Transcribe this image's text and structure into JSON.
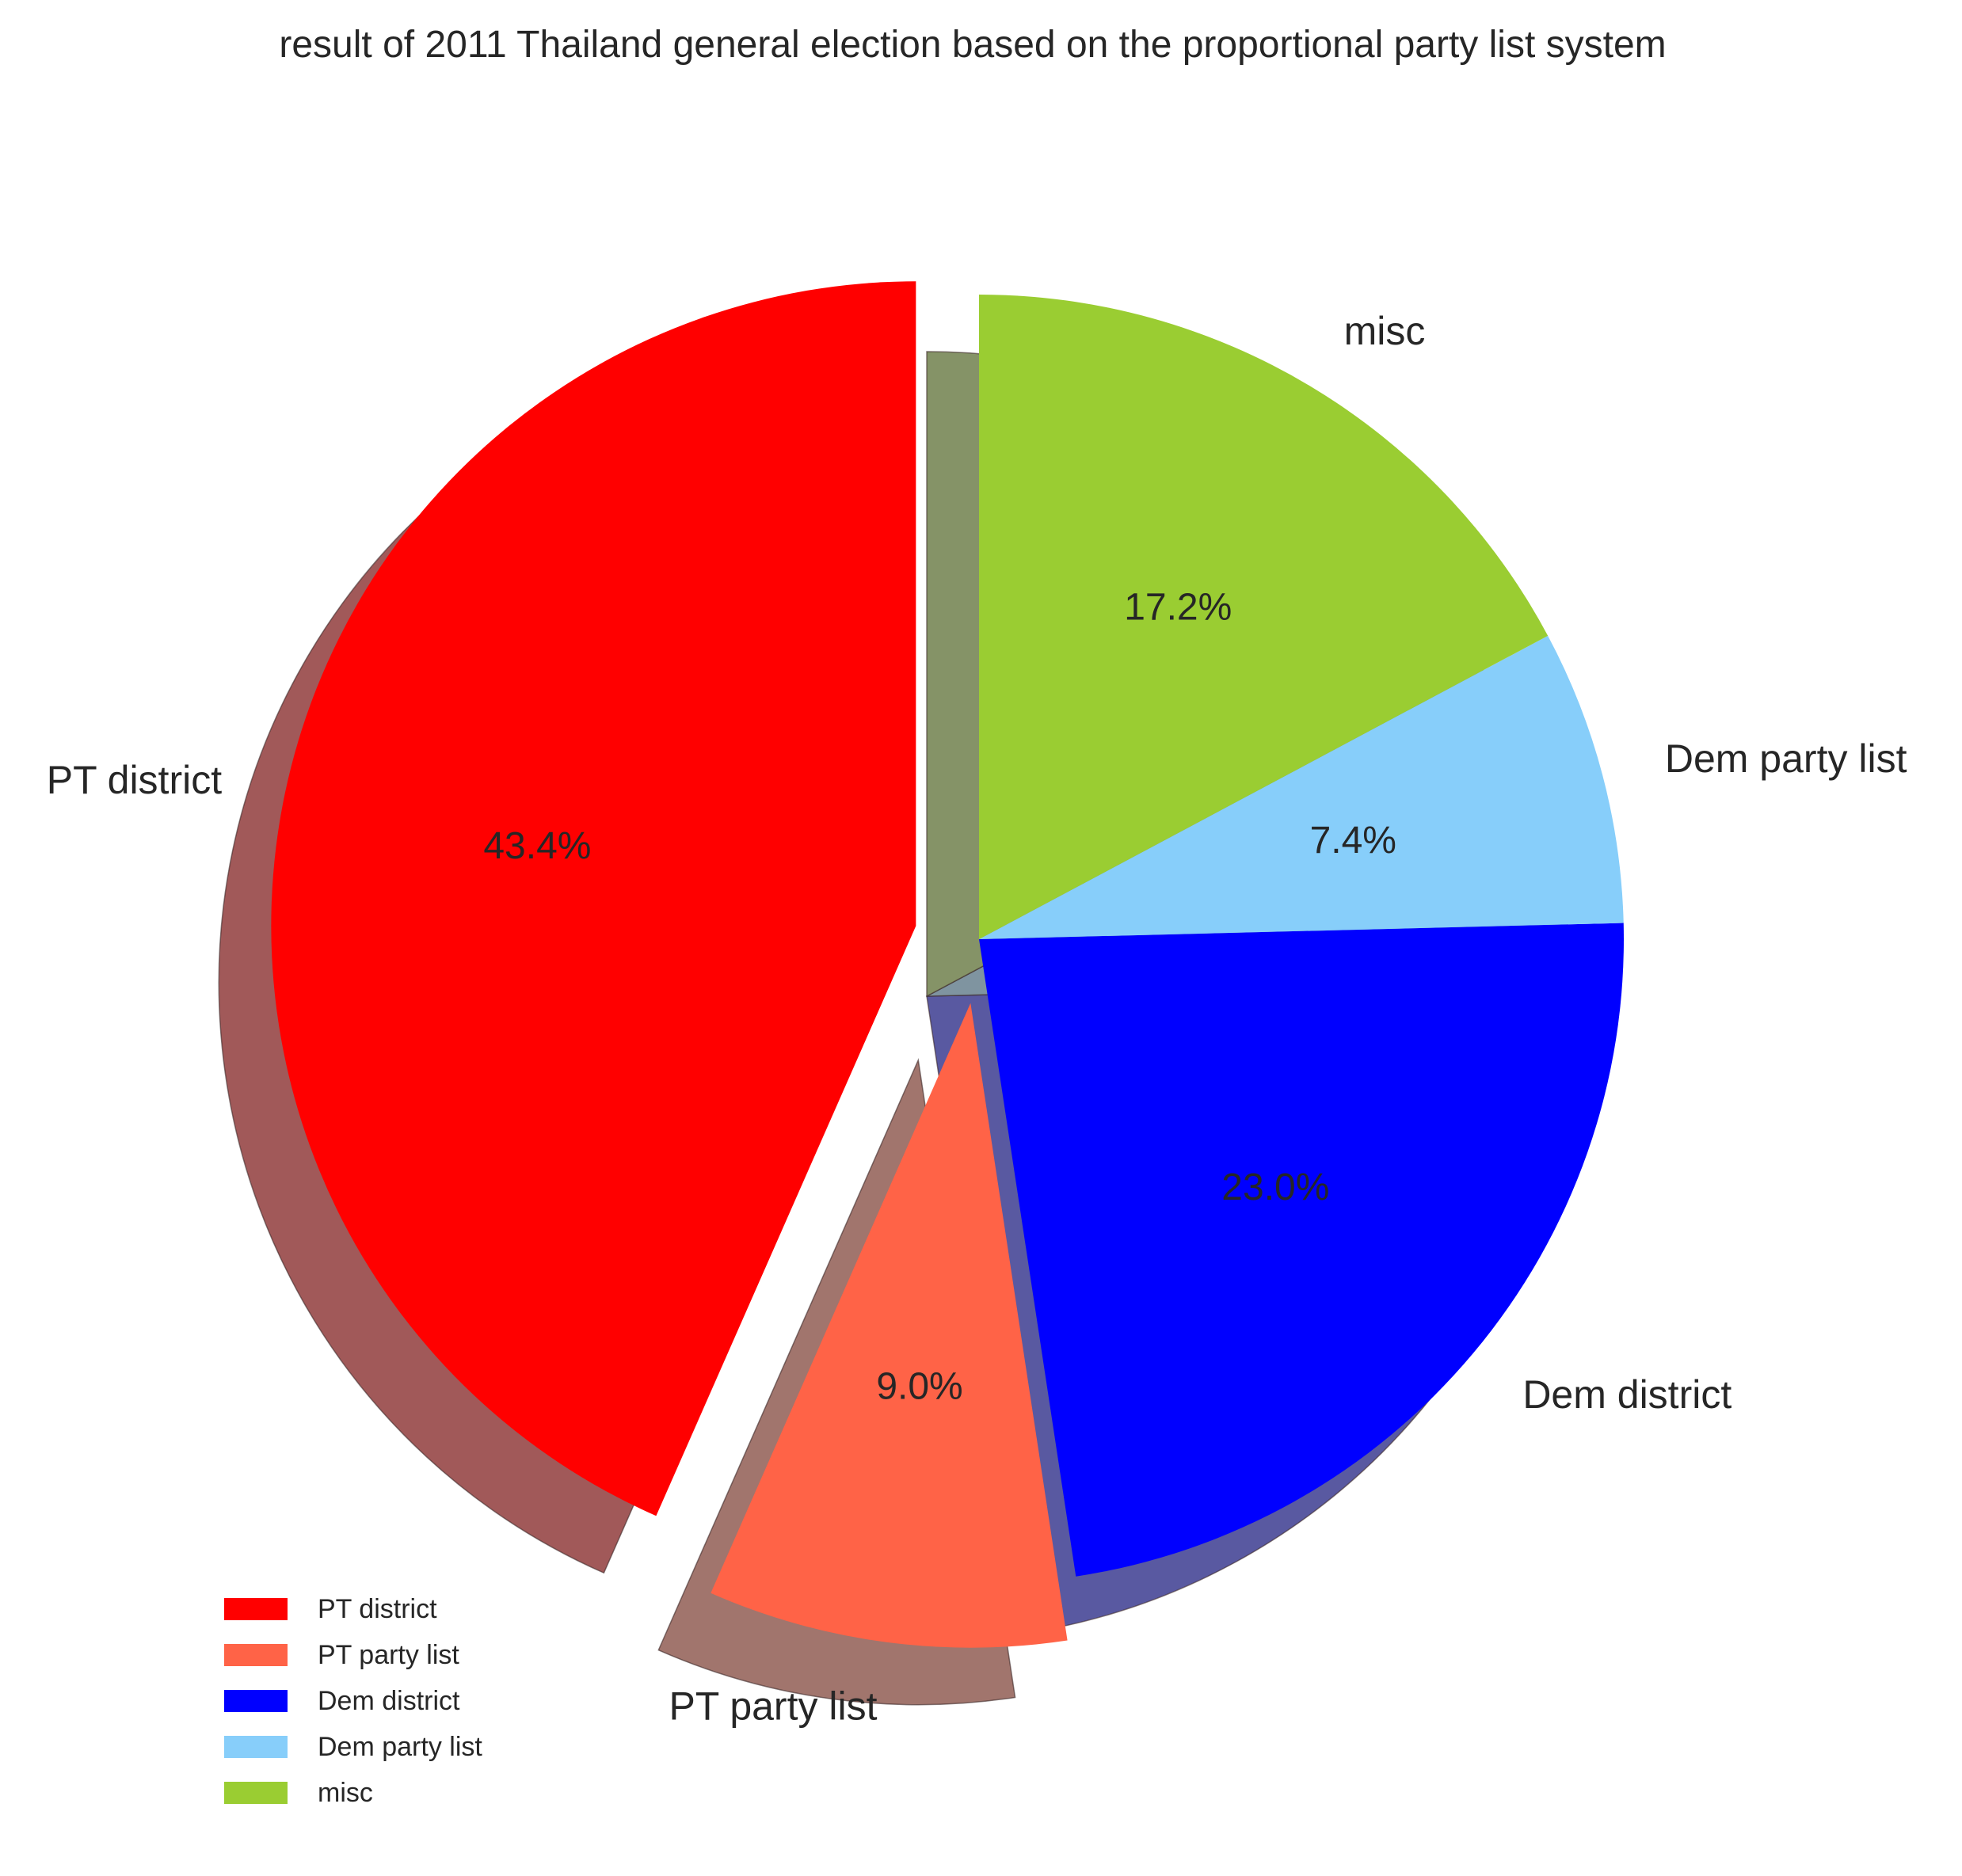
{
  "chart_data": {
    "type": "pie",
    "title": "result of 2011 Thailand general election based on the proportional party list system",
    "start_angle_deg": 90,
    "direction": "counterclockwise",
    "shadow": true,
    "legend_position": "bottom-left",
    "slices": [
      {
        "label": "PT district",
        "value": 43.4,
        "pct_label": "43.4%",
        "color": "#ff0000",
        "exploded": true
      },
      {
        "label": "PT party list",
        "value": 9.0,
        "pct_label": "9.0%",
        "color": "#ff6347",
        "exploded": true
      },
      {
        "label": "Dem district",
        "value": 23.0,
        "pct_label": "23.0%",
        "color": "#0000ff",
        "exploded": false
      },
      {
        "label": "Dem party list",
        "value": 7.4,
        "pct_label": "7.4%",
        "color": "#87cefa",
        "exploded": false
      },
      {
        "label": "misc",
        "value": 17.2,
        "pct_label": "17.2%",
        "color": "#9acd32",
        "exploded": false
      }
    ]
  }
}
